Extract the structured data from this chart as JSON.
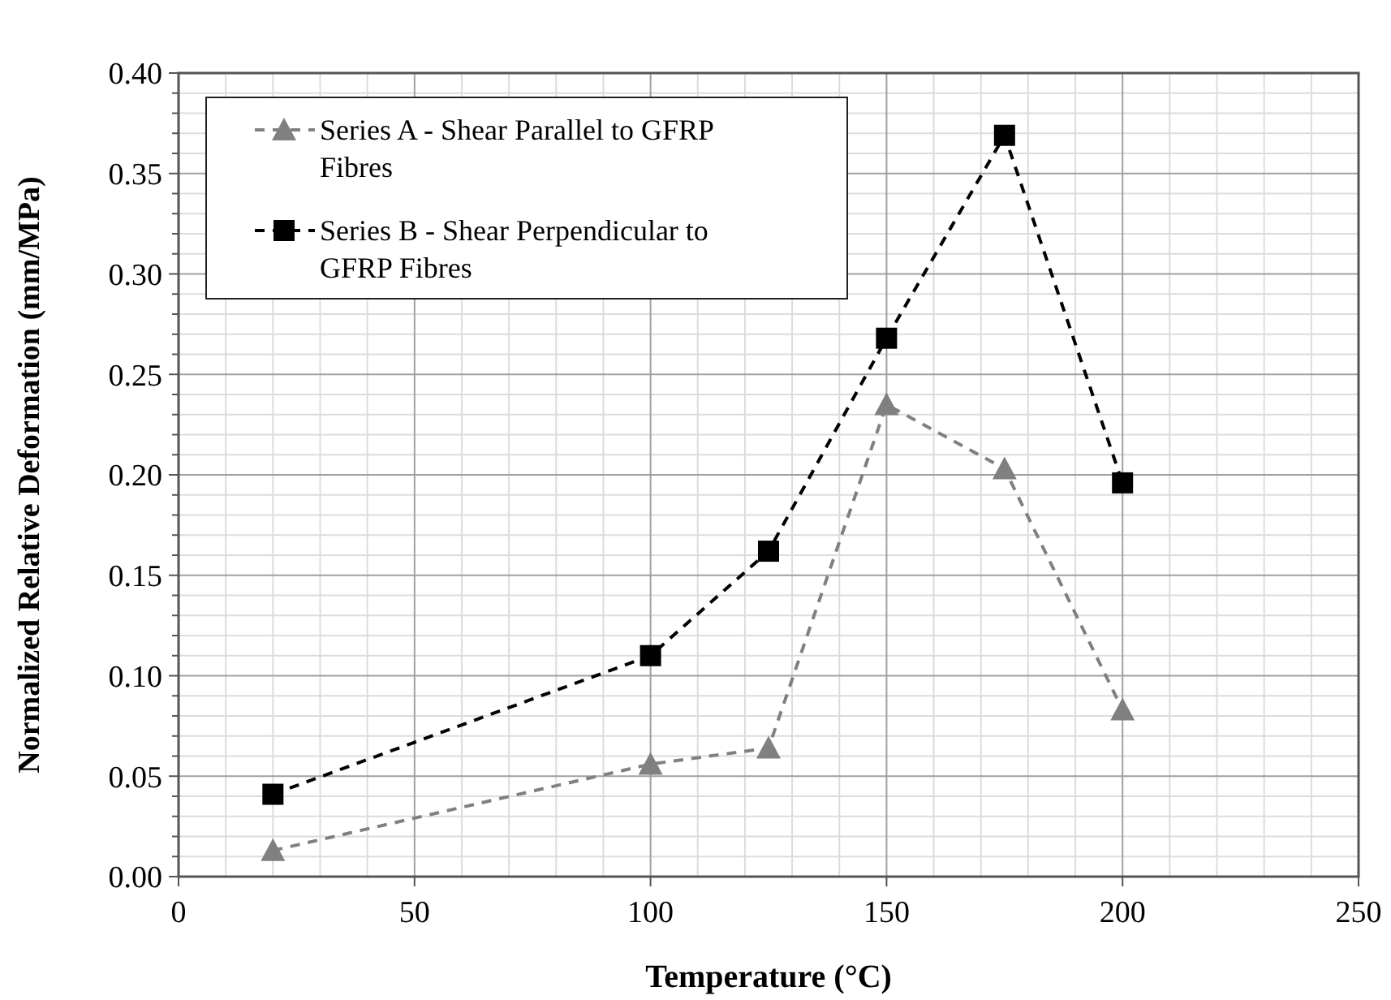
{
  "chart_data": {
    "type": "line",
    "xlabel": "Temperature (°C)",
    "ylabel": "Normalized Relative Deformation (mm/MPa)",
    "x": [
      20,
      100,
      125,
      150,
      175,
      200
    ],
    "series": [
      {
        "name": "Series A - Shear Parallel to GFRP Fibres",
        "color": "#808080",
        "marker": "triangle",
        "values": [
          0.013,
          0.056,
          0.064,
          0.235,
          0.203,
          0.083
        ]
      },
      {
        "name": "Series B - Shear Perpendicular to GFRP Fibres",
        "color": "#000000",
        "marker": "square",
        "values": [
          0.041,
          0.11,
          0.162,
          0.268,
          0.369,
          0.196
        ]
      }
    ],
    "xlim": [
      0,
      250
    ],
    "xticks": [
      0,
      50,
      100,
      150,
      200,
      250
    ],
    "ylim": [
      0,
      0.4
    ],
    "yticks": [
      {
        "value": 0,
        "label": "0.00"
      },
      {
        "value": 0.05,
        "label": "0.05"
      },
      {
        "value": 0.1,
        "label": "0.10"
      },
      {
        "value": 0.15,
        "label": "0.15"
      },
      {
        "value": 0.2,
        "label": "0.20"
      },
      {
        "value": 0.25,
        "label": "0.25"
      },
      {
        "value": 0.3,
        "label": "0.30"
      },
      {
        "value": 0.35,
        "label": "0.35"
      },
      {
        "value": 0.4,
        "label": "0.40"
      }
    ],
    "grid": true,
    "legend": "top left",
    "line_style": "dashed"
  }
}
